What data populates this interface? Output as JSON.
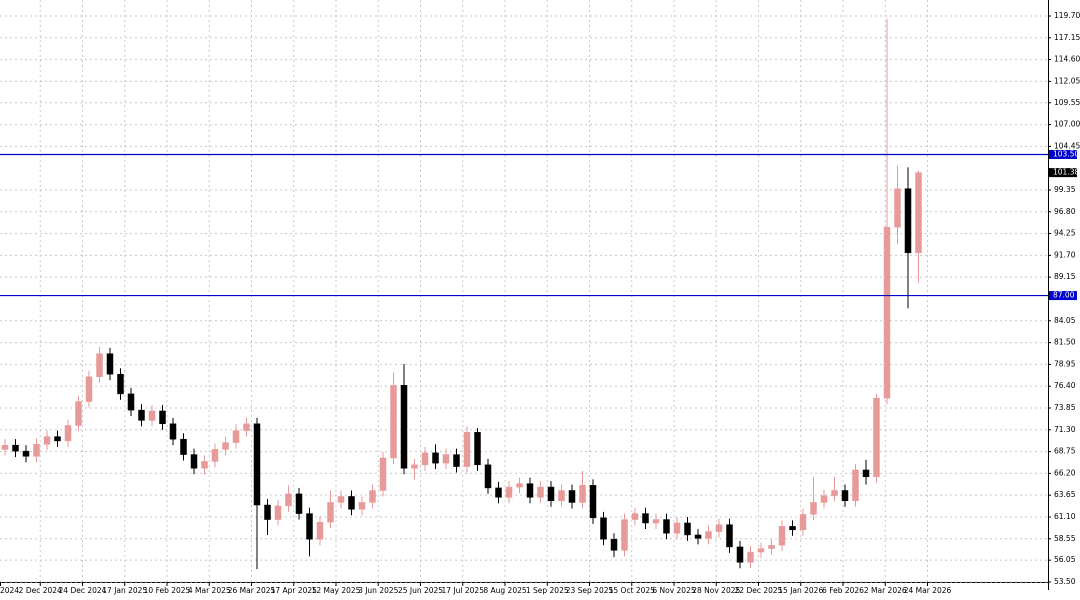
{
  "chart_data": {
    "type": "candlestick",
    "open": [
      69.0,
      69.5,
      68.8,
      68.2,
      69.6,
      70.5,
      70.0,
      71.8,
      74.6,
      77.5,
      80.2,
      77.8,
      75.5,
      73.6,
      72.4,
      73.5,
      72.0,
      70.2,
      68.4,
      66.8,
      67.6,
      69.0,
      69.8,
      71.2,
      72.0,
      62.5,
      60.8,
      62.4,
      63.8,
      61.5,
      58.5,
      60.5,
      62.8,
      63.5,
      62.0,
      62.8,
      64.2,
      68.0,
      76.5,
      66.8,
      67.2,
      68.6,
      67.4,
      68.4,
      67.0,
      71.0,
      67.2,
      64.5,
      63.4,
      64.6,
      65.0,
      63.4,
      64.6,
      63.0,
      64.2,
      62.8,
      64.8,
      61.0,
      58.5,
      57.2,
      60.8,
      61.5,
      60.4,
      60.8,
      59.2,
      60.4,
      59.0,
      58.6,
      59.4,
      60.2,
      57.6,
      55.8,
      57.0,
      57.4,
      57.8,
      60.0,
      59.6,
      61.4,
      62.8,
      63.6,
      64.2,
      63.0,
      66.6,
      65.8,
      75.0,
      95.0,
      99.5,
      92.0
    ],
    "high": [
      70.2,
      70.2,
      69.5,
      70.3,
      71.2,
      71.2,
      72.5,
      75.3,
      78.2,
      81.0,
      80.9,
      78.5,
      76.2,
      74.3,
      74.2,
      74.2,
      72.7,
      70.9,
      69.1,
      68.3,
      69.7,
      70.5,
      71.9,
      72.7,
      72.7,
      63.2,
      63.1,
      64.8,
      64.5,
      62.2,
      61.2,
      64.2,
      64.2,
      64.2,
      63.5,
      64.9,
      68.7,
      78.0,
      79.0,
      67.9,
      69.3,
      69.6,
      69.1,
      69.1,
      71.7,
      71.5,
      67.9,
      65.2,
      65.3,
      65.7,
      65.7,
      65.3,
      65.3,
      64.9,
      64.9,
      66.5,
      65.5,
      61.7,
      59.2,
      61.5,
      62.2,
      62.2,
      61.5,
      61.5,
      61.1,
      61.1,
      59.7,
      60.1,
      60.9,
      60.9,
      58.3,
      57.7,
      58.1,
      58.5,
      60.7,
      60.7,
      62.1,
      65.8,
      64.3,
      65.8,
      64.9,
      67.3,
      67.8,
      75.5,
      119.4,
      102.2,
      102.0,
      101.6
    ],
    "low": [
      68.3,
      68.1,
      67.5,
      67.5,
      68.9,
      69.3,
      69.3,
      71.1,
      73.9,
      76.8,
      77.1,
      74.8,
      72.9,
      71.7,
      71.7,
      71.3,
      69.5,
      67.7,
      66.1,
      66.1,
      66.9,
      68.3,
      69.1,
      70.5,
      55.0,
      59.0,
      60.1,
      61.7,
      60.8,
      56.5,
      57.8,
      59.8,
      62.1,
      61.3,
      61.3,
      62.1,
      63.5,
      67.3,
      66.1,
      65.5,
      66.5,
      66.7,
      66.7,
      66.3,
      66.3,
      66.5,
      63.8,
      62.7,
      62.7,
      63.9,
      62.7,
      62.7,
      62.3,
      62.3,
      62.1,
      62.1,
      60.3,
      57.8,
      56.4,
      56.5,
      60.1,
      59.7,
      59.7,
      58.5,
      58.5,
      58.3,
      57.9,
      57.9,
      58.7,
      56.9,
      55.1,
      55.1,
      56.3,
      56.7,
      57.1,
      58.9,
      58.9,
      60.7,
      62.1,
      62.9,
      62.3,
      62.3,
      64.9,
      65.1,
      74.3,
      93.0,
      85.5,
      88.5
    ],
    "close": [
      69.5,
      68.8,
      68.2,
      69.6,
      70.5,
      70.0,
      71.8,
      74.6,
      77.5,
      80.2,
      77.8,
      75.5,
      73.6,
      72.4,
      73.5,
      72.0,
      70.2,
      68.4,
      66.8,
      67.6,
      69.0,
      69.8,
      71.2,
      72.0,
      62.5,
      60.8,
      62.4,
      63.8,
      61.5,
      58.5,
      60.5,
      62.8,
      63.5,
      62.0,
      62.8,
      64.2,
      68.0,
      76.5,
      66.8,
      67.2,
      68.6,
      67.4,
      68.4,
      67.0,
      71.0,
      67.2,
      64.5,
      63.4,
      64.6,
      65.0,
      63.4,
      64.6,
      63.0,
      64.2,
      62.8,
      64.8,
      61.0,
      58.5,
      57.2,
      60.8,
      61.5,
      60.4,
      60.8,
      59.2,
      60.4,
      59.0,
      58.6,
      59.4,
      60.2,
      57.6,
      55.8,
      57.0,
      57.4,
      57.8,
      60.0,
      59.6,
      61.4,
      62.8,
      63.6,
      64.2,
      63.0,
      66.6,
      65.8,
      75.0,
      95.0,
      99.5,
      92.0,
      101.38
    ],
    "up_color": "#e89a9a",
    "down_color": "#000000",
    "x_labels": [
      "2024",
      "2 Dec 2024",
      "24 Dec 2024",
      "17 Jan 2025",
      "10 Feb 2025",
      "4 Mar 2025",
      "26 Mar 2025",
      "17 Apr 2025",
      "12 May 2025",
      "3 Jun 2025",
      "25 Jun 2025",
      "17 Jul 2025",
      "8 Aug 2025",
      "1 Sep 2025",
      "23 Sep 2025",
      "15 Oct 2025",
      "6 Nov 2025",
      "28 Nov 2025",
      "22 Dec 2025",
      "15 Jan 2026",
      "6 Feb 2026",
      "2 Mar 2026",
      "24 Mar 2026"
    ],
    "ylim": [
      52.56,
      121.57
    ],
    "yticks": [
      {
        "value": 53.5,
        "label": "53.50"
      },
      {
        "value": 56.05,
        "label": "56.05"
      },
      {
        "value": 58.55,
        "label": "58.55"
      },
      {
        "value": 61.1,
        "label": "61.10"
      },
      {
        "value": 63.65,
        "label": "63.65"
      },
      {
        "value": 66.2,
        "label": "66.20"
      },
      {
        "value": 68.75,
        "label": "68.75"
      },
      {
        "value": 71.3,
        "label": "71.30"
      },
      {
        "value": 73.85,
        "label": "73.85"
      },
      {
        "value": 76.4,
        "label": "76.40"
      },
      {
        "value": 78.95,
        "label": "78.95"
      },
      {
        "value": 81.5,
        "label": "81.50"
      },
      {
        "value": 84.05,
        "label": "84.05"
      },
      {
        "value": 89.15,
        "label": "89.15"
      },
      {
        "value": 91.7,
        "label": "91.70"
      },
      {
        "value": 94.25,
        "label": "94.25"
      },
      {
        "value": 96.8,
        "label": "96.80"
      },
      {
        "value": 99.35,
        "label": "99.35"
      },
      {
        "value": 104.45,
        "label": "104.45"
      },
      {
        "value": 107,
        "label": "107.00"
      },
      {
        "value": 109.55,
        "label": "109.55"
      },
      {
        "value": 112.05,
        "label": "112.05"
      },
      {
        "value": 114.6,
        "label": "114.60"
      },
      {
        "value": 117.15,
        "label": "117.15"
      },
      {
        "value": 119.7,
        "label": "119.70"
      }
    ],
    "levels": [
      {
        "value": 103.5,
        "label": "103.50"
      },
      {
        "value": 87,
        "label": "87.00"
      }
    ],
    "level_color": "#0000cc",
    "last_price": {
      "value": 101.38,
      "label": "101.38"
    },
    "grid": true
  }
}
